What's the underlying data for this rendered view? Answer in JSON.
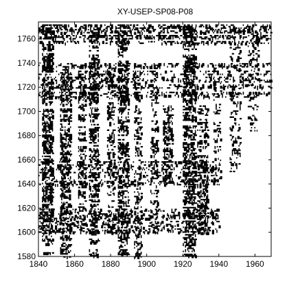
{
  "chart_data": {
    "type": "heatmap",
    "title": "XY-USEP-SP08-P08",
    "xlabel": "",
    "ylabel": "",
    "xlim": [
      1840,
      1969
    ],
    "ylim": [
      1580,
      1774
    ],
    "x_ticks": [
      1840,
      1860,
      1880,
      1900,
      1920,
      1940,
      1960
    ],
    "x_tick_labels": [
      "1840",
      "1860",
      "1880",
      "1900",
      "1920",
      "1940",
      "1960"
    ],
    "y_ticks": [
      1580,
      1600,
      1620,
      1640,
      1660,
      1680,
      1700,
      1720,
      1740,
      1760
    ],
    "y_tick_labels": [
      "1580",
      "1600",
      "1620",
      "1640",
      "1660",
      "1680",
      "1700",
      "1720",
      "1740",
      "1760"
    ],
    "grid": false,
    "cell_color": "#000000",
    "background_color": "#ffffff",
    "dense_regions": [
      {
        "x": [
          1842,
          1848
        ],
        "y": [
          1580,
          1772
        ],
        "density": 0.55
      },
      {
        "x": [
          1852,
          1858
        ],
        "y": [
          1580,
          1735
        ],
        "density": 0.45
      },
      {
        "x": [
          1862,
          1866
        ],
        "y": [
          1600,
          1740
        ],
        "density": 0.35
      },
      {
        "x": [
          1868,
          1873
        ],
        "y": [
          1580,
          1772
        ],
        "density": 0.5
      },
      {
        "x": [
          1878,
          1882
        ],
        "y": [
          1600,
          1740
        ],
        "density": 0.35
      },
      {
        "x": [
          1884,
          1890
        ],
        "y": [
          1580,
          1772
        ],
        "density": 0.45
      },
      {
        "x": [
          1893,
          1897
        ],
        "y": [
          1580,
          1740
        ],
        "density": 0.3
      },
      {
        "x": [
          1902,
          1906
        ],
        "y": [
          1600,
          1740
        ],
        "density": 0.25
      },
      {
        "x": [
          1909,
          1914
        ],
        "y": [
          1640,
          1705
        ],
        "density": 0.5
      },
      {
        "x": [
          1920,
          1927
        ],
        "y": [
          1580,
          1772
        ],
        "density": 0.55
      },
      {
        "x": [
          1928,
          1934
        ],
        "y": [
          1600,
          1705
        ],
        "density": 0.45
      },
      {
        "x": [
          1937,
          1941
        ],
        "y": [
          1640,
          1740
        ],
        "density": 0.25
      },
      {
        "x": [
          1946,
          1952
        ],
        "y": [
          1650,
          1772
        ],
        "density": 0.2
      },
      {
        "x": [
          1956,
          1962
        ],
        "y": [
          1680,
          1772
        ],
        "density": 0.15
      },
      {
        "x": [
          1840,
          1969
        ],
        "y": [
          1754,
          1772
        ],
        "density": 0.3
      },
      {
        "x": [
          1840,
          1969
        ],
        "y": [
          1712,
          1740
        ],
        "density": 0.22
      },
      {
        "x": [
          1840,
          1940
        ],
        "y": [
          1600,
          1622
        ],
        "density": 0.22
      },
      {
        "x": [
          1840,
          1940
        ],
        "y": [
          1640,
          1660
        ],
        "density": 0.18
      }
    ]
  }
}
